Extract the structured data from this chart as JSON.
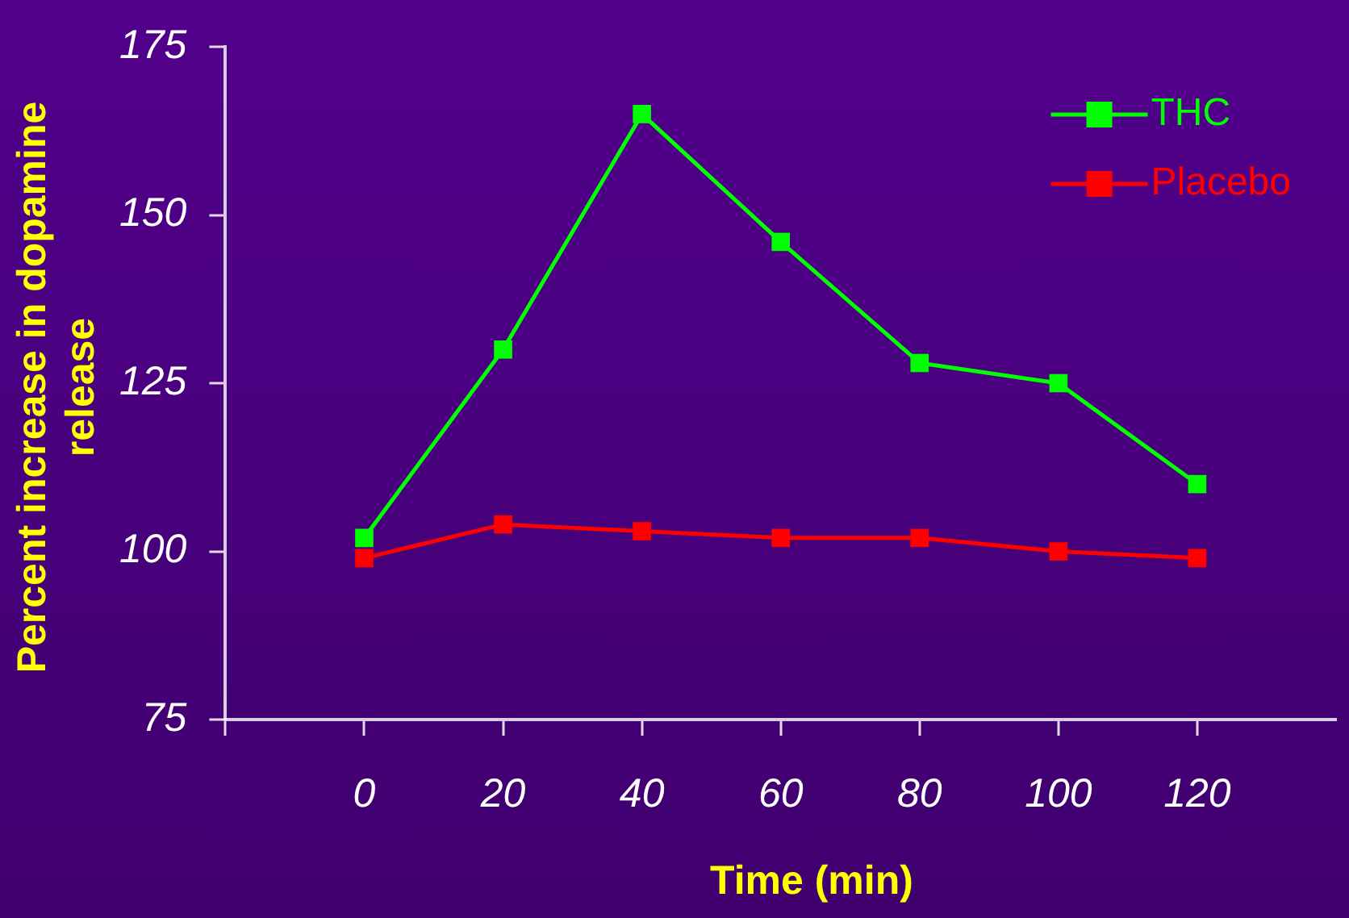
{
  "chart_data": {
    "type": "line",
    "xlabel": "Time (min)",
    "ylabel": "Percent increase in dopamine release",
    "x": [
      0,
      20,
      40,
      60,
      80,
      100,
      120
    ],
    "series": [
      {
        "name": "THC",
        "color": "#00ff00",
        "values": [
          102,
          130,
          165,
          146,
          128,
          125,
          110
        ]
      },
      {
        "name": "Placebo",
        "color": "#ff0000",
        "values": [
          99,
          104,
          103,
          102,
          102,
          100,
          99
        ]
      }
    ],
    "xlim": [
      -20,
      140
    ],
    "xticks": [
      {
        "value": -20,
        "label": null
      },
      0,
      20,
      40,
      60,
      80,
      100,
      120
    ],
    "ylim": [
      75,
      175
    ],
    "yticks": [
      75,
      100,
      125,
      150,
      175
    ],
    "grid": false,
    "legend": "top right",
    "marker": "square",
    "line_style": "solid"
  }
}
